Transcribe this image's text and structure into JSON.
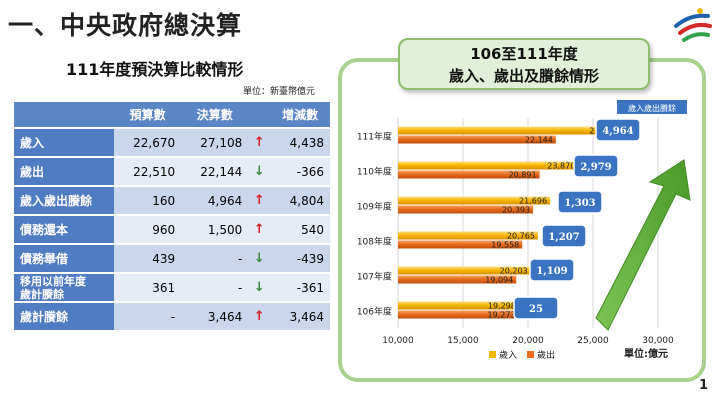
{
  "header": {
    "title": "一、中央政府總決算",
    "subtitle": "111年度預決算比較情形",
    "unit_note": "單位：新臺幣億元"
  },
  "table": {
    "columns": [
      "",
      "預算數",
      "決算數",
      "",
      "增減數"
    ],
    "rows": [
      {
        "label": "歲入",
        "budget": "22,670",
        "actual": "27,108",
        "trend": "↑",
        "dir": "up",
        "diff": "4,438"
      },
      {
        "label": "歲出",
        "budget": "22,510",
        "actual": "22,144",
        "trend": "↓",
        "dir": "down",
        "diff": "-366"
      },
      {
        "label": "歲入歲出賸餘",
        "budget": "160",
        "actual": "4,964",
        "trend": "↑",
        "dir": "up",
        "diff": "4,804"
      },
      {
        "label": "債務還本",
        "budget": "960",
        "actual": "1,500",
        "trend": "↑",
        "dir": "up",
        "diff": "540"
      },
      {
        "label": "債務舉借",
        "budget": "439",
        "actual": "-",
        "trend": "↓",
        "dir": "down",
        "diff": "-439"
      },
      {
        "label_lines": [
          "移用以前年度",
          "歲計賸餘"
        ],
        "budget": "361",
        "actual": "-",
        "trend": "↓",
        "dir": "down",
        "diff": "-361"
      },
      {
        "label": "歲計賸餘",
        "budget": "-",
        "actual": "3,464",
        "trend": "↑",
        "dir": "up",
        "diff": "3,464"
      }
    ]
  },
  "chart_panel": {
    "title_line1": "106至111年度",
    "title_line2": "歲入、歲出及賸餘情形"
  },
  "chart_data": {
    "type": "bar",
    "orientation": "horizontal",
    "categories": [
      "111年度",
      "110年度",
      "109年度",
      "108年度",
      "107年度",
      "106年度"
    ],
    "series": [
      {
        "name": "歲入",
        "color": "#f5b400",
        "values": [
          27108,
          23870,
          21696,
          20765,
          20203,
          19298
        ],
        "labels": [
          "27,108",
          "23,870",
          "21,696",
          "20,765",
          "20,203",
          "19,298"
        ]
      },
      {
        "name": "歲出",
        "color": "#e86c1c",
        "values": [
          22144,
          20891,
          20393,
          19558,
          19094,
          19273
        ],
        "labels": [
          "22,144",
          "20,891",
          "20,393",
          "19,558",
          "19,094",
          "19,273"
        ]
      }
    ],
    "surplus": {
      "label": "歲入歲出賸餘",
      "values": [
        4964,
        2979,
        1303,
        1207,
        1109,
        25
      ],
      "labels": [
        "4,964",
        "2,979",
        "1,303",
        "1,207",
        "1,109",
        "25"
      ]
    },
    "xlim": [
      10000,
      30000
    ],
    "xticks": [
      "10,000",
      "15,000",
      "20,000",
      "25,000",
      "30,000"
    ],
    "xtick_values": [
      10000,
      15000,
      20000,
      25000,
      30000
    ],
    "unit": "單位:億元",
    "legend_position": "bottom",
    "grid": true,
    "arrow_color": "#5aa832",
    "surplus_box_color": "#3a73c2"
  },
  "page_number": "1"
}
